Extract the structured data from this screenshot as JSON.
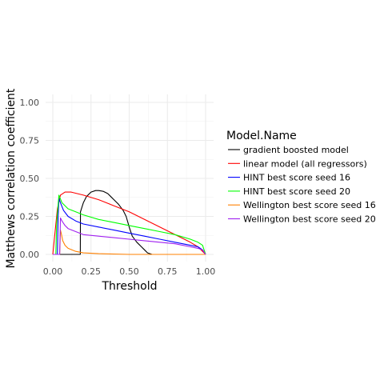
{
  "chart_data": {
    "type": "line",
    "title": "",
    "xlabel": "Threshold",
    "ylabel": "Matthews correlation coefficient",
    "xlim": [
      0,
      1
    ],
    "ylim": [
      0,
      1
    ],
    "x_ticks": [
      "0.00",
      "0.25",
      "0.50",
      "0.75",
      "1.00"
    ],
    "y_ticks": [
      "0.00",
      "0.25",
      "0.50",
      "0.75",
      "1.00"
    ],
    "grid": true,
    "legend": {
      "title": "Model.Name",
      "placement": "right"
    },
    "series": [
      {
        "name": "gradient boosted model",
        "color": "#000000",
        "x": [
          0.0,
          0.18,
          0.181,
          0.2,
          0.22,
          0.25,
          0.28,
          0.3,
          0.33,
          0.36,
          0.38,
          0.4,
          0.43,
          0.46,
          0.48,
          0.5,
          0.52,
          0.55,
          0.58,
          0.6,
          0.62,
          0.65,
          1.0
        ],
        "y": [
          0.0,
          0.0,
          0.28,
          0.34,
          0.38,
          0.41,
          0.42,
          0.42,
          0.415,
          0.4,
          0.38,
          0.36,
          0.33,
          0.29,
          0.25,
          0.18,
          0.12,
          0.08,
          0.05,
          0.03,
          0.01,
          0.0,
          0.0
        ]
      },
      {
        "name": "linear model (all regressors)",
        "color": "#ff0000",
        "x": [
          0.0,
          0.03,
          0.05,
          0.08,
          0.12,
          0.2,
          0.3,
          0.4,
          0.5,
          0.6,
          0.7,
          0.8,
          0.9,
          0.95,
          0.98,
          1.0
        ],
        "y": [
          0.0,
          0.3,
          0.39,
          0.41,
          0.41,
          0.39,
          0.36,
          0.32,
          0.28,
          0.23,
          0.18,
          0.13,
          0.08,
          0.05,
          0.02,
          0.0
        ]
      },
      {
        "name": "HINT best score seed 16",
        "color": "#0000ff",
        "x": [
          0.0,
          0.03,
          0.035,
          0.04,
          0.05,
          0.07,
          0.1,
          0.15,
          0.2,
          0.3,
          0.4,
          0.5,
          0.6,
          0.7,
          0.8,
          0.9,
          0.95,
          0.98,
          1.0
        ],
        "y": [
          0.0,
          0.0,
          0.25,
          0.37,
          0.34,
          0.29,
          0.25,
          0.22,
          0.2,
          0.18,
          0.16,
          0.14,
          0.12,
          0.1,
          0.08,
          0.06,
          0.05,
          0.03,
          0.0
        ]
      },
      {
        "name": "HINT best score seed 20",
        "color": "#00ff00",
        "x": [
          0.0,
          0.02,
          0.025,
          0.04,
          0.06,
          0.1,
          0.15,
          0.2,
          0.3,
          0.4,
          0.5,
          0.6,
          0.7,
          0.8,
          0.9,
          0.95,
          0.98,
          1.0
        ],
        "y": [
          0.0,
          0.0,
          0.2,
          0.39,
          0.34,
          0.3,
          0.28,
          0.26,
          0.23,
          0.21,
          0.19,
          0.17,
          0.15,
          0.13,
          0.1,
          0.08,
          0.06,
          0.0
        ]
      },
      {
        "name": "Wellington best score seed 16",
        "color": "#ff8000",
        "x": [
          0.0,
          0.045,
          0.05,
          0.055,
          0.065,
          0.08,
          0.1,
          0.15,
          0.2,
          0.3,
          0.5,
          0.7,
          1.0
        ],
        "y": [
          0.0,
          0.0,
          0.16,
          0.14,
          0.09,
          0.06,
          0.04,
          0.02,
          0.01,
          0.005,
          0.0,
          0.0,
          0.0
        ]
      },
      {
        "name": "Wellington best score seed 20",
        "color": "#a020f0",
        "x": [
          0.0,
          0.045,
          0.05,
          0.06,
          0.08,
          0.1,
          0.15,
          0.2,
          0.3,
          0.4,
          0.5,
          0.6,
          0.7,
          0.8,
          0.9,
          0.95,
          0.98,
          1.0
        ],
        "y": [
          0.0,
          0.0,
          0.24,
          0.22,
          0.19,
          0.17,
          0.15,
          0.13,
          0.12,
          0.11,
          0.1,
          0.09,
          0.08,
          0.07,
          0.05,
          0.04,
          0.03,
          0.0
        ]
      }
    ]
  }
}
